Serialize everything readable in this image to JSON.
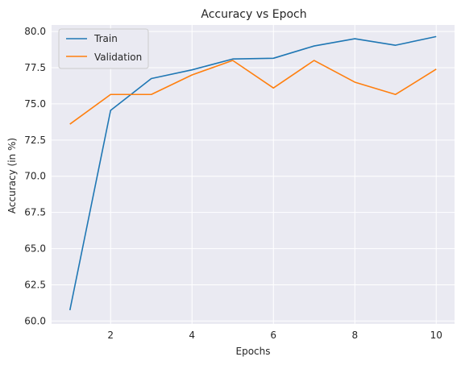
{
  "chart_data": {
    "type": "line",
    "title": "Accuracy vs Epoch",
    "xlabel": "Epochs",
    "ylabel": "Accuracy (in %)",
    "x": [
      1,
      2,
      3,
      4,
      5,
      6,
      7,
      8,
      9,
      10
    ],
    "xlim": [
      0.55,
      10.45
    ],
    "ylim": [
      59.8,
      80.45
    ],
    "xticks": [
      2,
      4,
      6,
      8,
      10
    ],
    "yticks": [
      60.0,
      62.5,
      65.0,
      67.5,
      70.0,
      72.5,
      75.0,
      77.5,
      80.0
    ],
    "xtick_labels": [
      "2",
      "4",
      "6",
      "8",
      "10"
    ],
    "ytick_labels": [
      "60.0",
      "62.5",
      "65.0",
      "67.5",
      "70.0",
      "72.5",
      "75.0",
      "77.5",
      "80.0"
    ],
    "grid": true,
    "legend_position": "top-left",
    "series": [
      {
        "name": "Train",
        "color": "#1f77b4",
        "values": [
          60.75,
          74.55,
          76.75,
          77.35,
          78.1,
          78.15,
          79.0,
          79.5,
          79.05,
          79.65
        ]
      },
      {
        "name": "Validation",
        "color": "#ff7f0e",
        "values": [
          73.6,
          75.65,
          75.65,
          77.0,
          78.0,
          76.1,
          78.0,
          76.5,
          75.65,
          77.4
        ]
      }
    ],
    "colors": {
      "plot_background": "#eaeaf2",
      "grid": "#ffffff",
      "text": "#262626"
    }
  }
}
